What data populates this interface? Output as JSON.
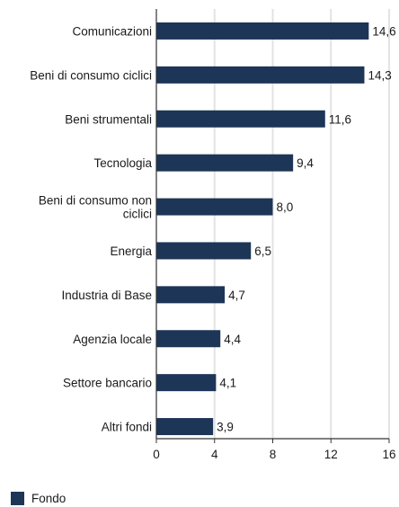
{
  "chart_data": {
    "type": "bar",
    "orientation": "horizontal",
    "categories": [
      [
        "Comunicazioni"
      ],
      [
        "Beni di consumo ciclici"
      ],
      [
        "Beni strumentali"
      ],
      [
        "Tecnologia"
      ],
      [
        "Beni di consumo non",
        "ciclici"
      ],
      [
        "Energia"
      ],
      [
        "Industria di Base"
      ],
      [
        "Agenzia locale"
      ],
      [
        "Settore bancario"
      ],
      [
        "Altri fondi"
      ]
    ],
    "series": [
      {
        "name": "Fondo",
        "values": [
          14.6,
          14.3,
          11.6,
          9.4,
          8.0,
          6.5,
          4.7,
          4.4,
          4.1,
          3.9
        ],
        "labels": [
          "14,6",
          "14,3",
          "11,6",
          "9,4",
          "8,0",
          "6,5",
          "4,7",
          "4,4",
          "4,1",
          "3,9"
        ]
      }
    ],
    "xlim": [
      0,
      16
    ],
    "xticks": [
      0,
      4,
      8,
      12,
      16
    ],
    "grid": true,
    "legend_position": "bottom-left",
    "bar_color": "#1d3557",
    "grid_color": "#e3e3e3",
    "axis_color": "#333333"
  }
}
